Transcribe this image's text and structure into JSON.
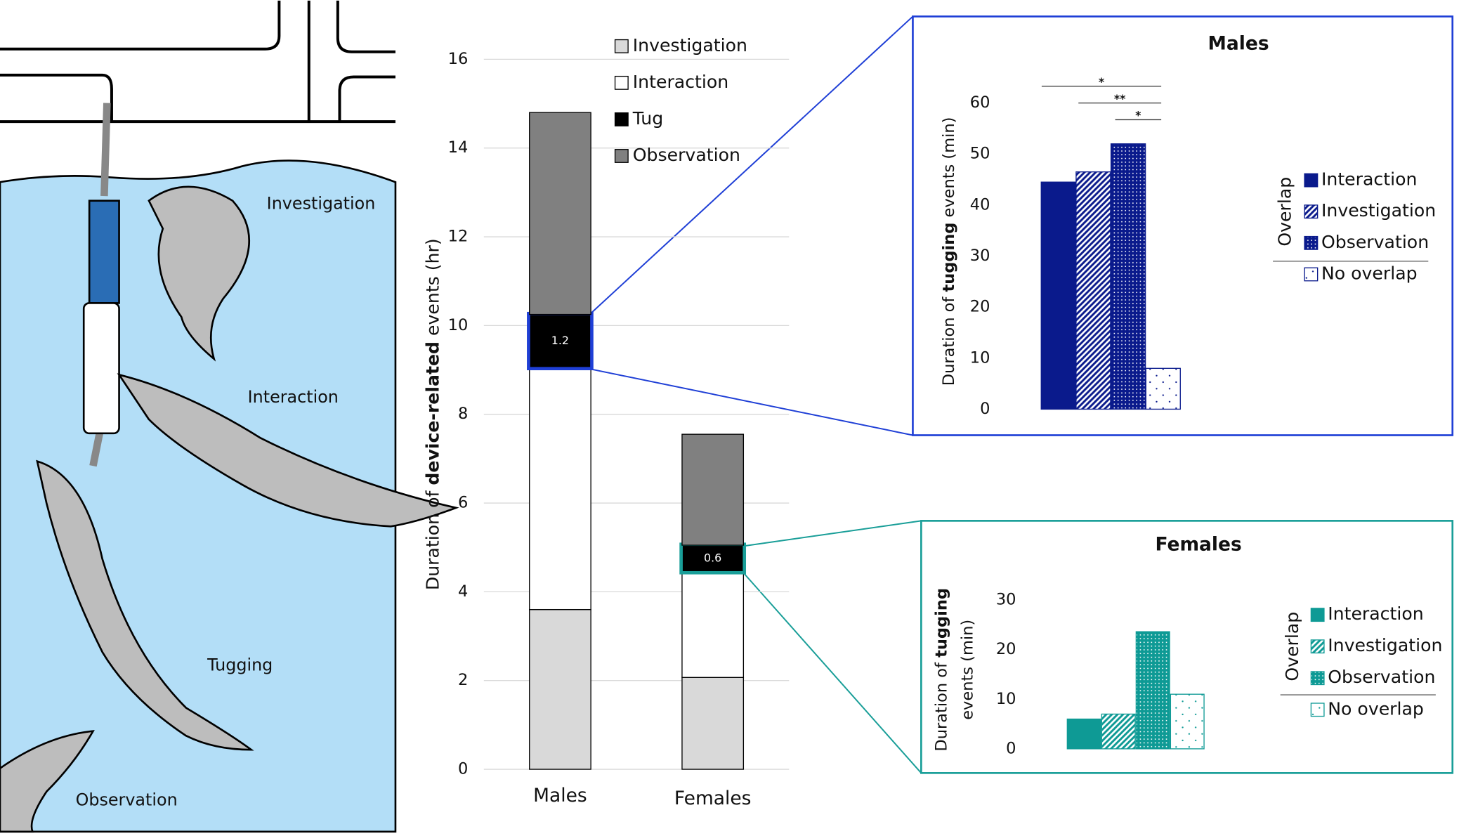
{
  "illustration": {
    "labels": [
      "Investigation",
      "Interaction",
      "Tugging",
      "Observation"
    ]
  },
  "chart_data": [
    {
      "type": "stacked_bar",
      "y_label": [
        "Duration of ",
        "device-related",
        " events (hr)"
      ],
      "categories": [
        "Males",
        "Females"
      ],
      "series": [
        {
          "name": "Investigation",
          "color": "#d9d9d9",
          "values": [
            3.6,
            2.07
          ]
        },
        {
          "name": "Interaction",
          "color": "#ffffff",
          "values": [
            5.45,
            2.38
          ]
        },
        {
          "name": "Tug",
          "color": "#000000",
          "values": [
            1.2,
            0.6
          ]
        },
        {
          "name": "Observation",
          "color": "#808080",
          "values": [
            4.55,
            2.5
          ]
        }
      ],
      "ylim": [
        0,
        16
      ],
      "yticks": [
        0,
        2,
        4,
        6,
        8,
        10,
        12,
        14,
        16
      ],
      "grid": true,
      "legend": "upper right"
    },
    {
      "type": "bar",
      "title": "Males",
      "y_label": [
        "Duration of ",
        "tugging",
        " events (min)"
      ],
      "categories": [
        "Interaction",
        "Investigation",
        "Observation",
        "No overlap"
      ],
      "values": [
        44.5,
        46.5,
        52,
        8
      ],
      "color": "#0a1a8c",
      "patterns": [
        "solid",
        "hatch",
        "checker",
        "dots"
      ],
      "legend_title": "Overlap",
      "annotations": [
        "*",
        "**",
        "*"
      ],
      "ylim": [
        0,
        60
      ],
      "yticks": [
        0,
        10,
        20,
        30,
        40,
        50,
        60
      ],
      "legend": "right"
    },
    {
      "type": "bar",
      "title": "Females",
      "y_label": [
        "Duration of ",
        "tugging",
        "events (min)"
      ],
      "categories": [
        "Interaction",
        "Investigation",
        "Observation",
        "No overlap"
      ],
      "values": [
        6,
        7,
        23.6,
        11
      ],
      "color": "#0e9a95",
      "patterns": [
        "solid",
        "hatch",
        "checker",
        "dots"
      ],
      "legend_title": "Overlap",
      "ylim": [
        0,
        30
      ],
      "yticks": [
        0,
        10,
        20,
        30
      ],
      "legend": "right"
    }
  ]
}
